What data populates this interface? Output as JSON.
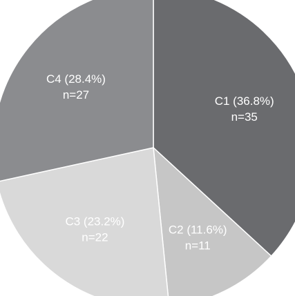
{
  "chart_data": {
    "type": "pie",
    "title": "",
    "start_angle_deg": 0,
    "direction": "clockwise",
    "slices": [
      {
        "label": "C1 (36.8%)",
        "count_label": "n=35",
        "value": 35,
        "percent": 36.8,
        "color": "#6a6b6e",
        "text_color": "#ffffff"
      },
      {
        "label": "C2 (11.6%)",
        "count_label": "n=11",
        "value": 11,
        "percent": 11.6,
        "color": "#c6c6c6",
        "text_color": "#222222"
      },
      {
        "label": "C3 (23.2%)",
        "count_label": "n=22",
        "value": 22,
        "percent": 23.2,
        "color": "#d9d9d9",
        "text_color": "#222222"
      },
      {
        "label": "C4 (28.4%)",
        "count_label": "n=27",
        "value": 27,
        "percent": 28.4,
        "color": "#8b8c8f",
        "text_color": "#ffffff"
      }
    ]
  }
}
